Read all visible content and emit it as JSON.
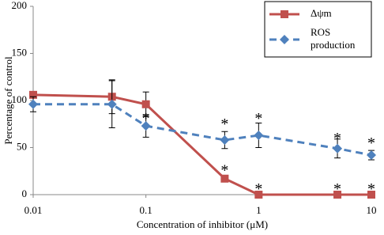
{
  "chart_data": {
    "type": "line",
    "x_label": "Concentration of inhibitor (μM)",
    "y_label": "Percentage of control",
    "x": [
      0.01,
      0.05,
      0.1,
      0.5,
      1,
      5,
      10
    ],
    "series": [
      {
        "name": "Δψm",
        "color": "#c0504d",
        "marker": "square",
        "dash": false,
        "values": [
          106,
          104,
          96,
          17,
          0,
          0,
          0
        ],
        "errors": [
          2,
          18,
          13,
          3,
          1,
          1,
          1
        ]
      },
      {
        "name": "ROS production",
        "color": "#4f81bd",
        "marker": "diamond",
        "dash": true,
        "values": [
          96,
          96,
          73,
          58,
          63,
          49,
          42
        ],
        "errors": [
          8,
          25,
          12,
          9,
          13,
          10,
          5
        ]
      }
    ],
    "annotations": [
      {
        "text": "*",
        "x": 0.1,
        "y": 83
      },
      {
        "text": "*",
        "x": 0.5,
        "y": 77
      },
      {
        "text": "*",
        "x": 0.5,
        "y": 28
      },
      {
        "text": "*",
        "x": 1,
        "y": 83
      },
      {
        "text": "*",
        "x": 1,
        "y": 8
      },
      {
        "text": "*",
        "x": 5,
        "y": 62
      },
      {
        "text": "*",
        "x": 5,
        "y": 8
      },
      {
        "text": "*",
        "x": 10,
        "y": 57
      },
      {
        "text": "*",
        "x": 10,
        "y": 8
      }
    ],
    "xlog": true,
    "xlim": [
      0.01,
      10
    ],
    "xticks": [
      0.01,
      0.1,
      1,
      10
    ],
    "ylim": [
      0,
      200
    ],
    "yticks": [
      0,
      50,
      100,
      150,
      200
    ],
    "legend": "top-right"
  }
}
